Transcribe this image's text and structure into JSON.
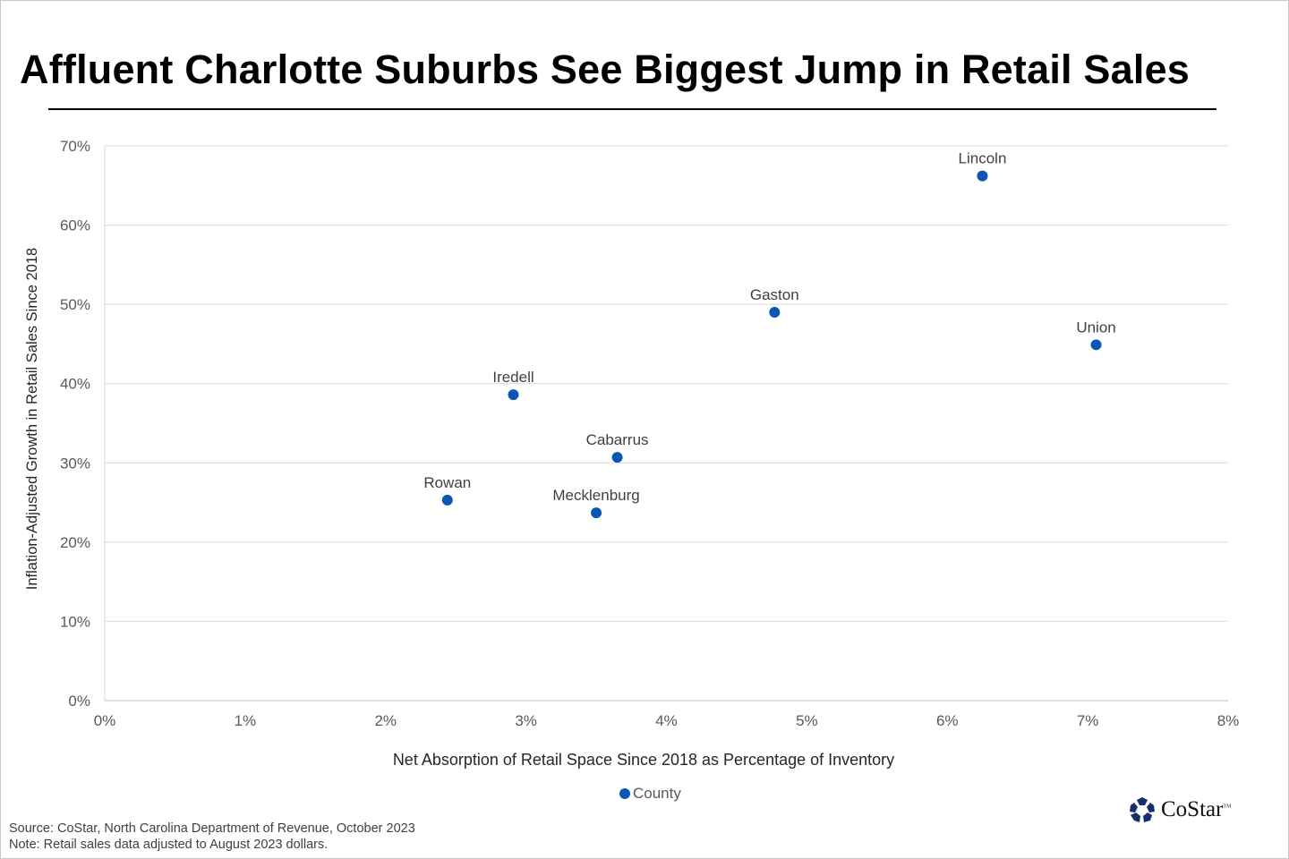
{
  "chart_data": {
    "type": "scatter",
    "title": "Affluent Charlotte Suburbs See Biggest Jump in Retail Sales",
    "xlabel": "Net Absorption  of Retail Space Since 2018 as Percentage of Inventory",
    "ylabel": "Inflation-Adjusted Growth in Retail Sales Since 2018",
    "xlim": [
      0,
      8
    ],
    "ylim": [
      0,
      70
    ],
    "x_ticks": [
      0,
      1,
      2,
      3,
      4,
      5,
      6,
      7,
      8
    ],
    "x_tick_labels": [
      "0%",
      "1%",
      "2%",
      "3%",
      "4%",
      "5%",
      "6%",
      "7%",
      "8%"
    ],
    "y_ticks": [
      0,
      10,
      20,
      30,
      40,
      50,
      60,
      70
    ],
    "y_tick_labels": [
      "0%",
      "10%",
      "20%",
      "30%",
      "40%",
      "50%",
      "60%",
      "70%"
    ],
    "grid": "horizontal",
    "legend": {
      "placement": "bottom",
      "entries": [
        "County"
      ]
    },
    "series": [
      {
        "name": "County",
        "color": "#0b56b3",
        "points": [
          {
            "label": "Rowan",
            "x": 2.44,
            "y": 25.3
          },
          {
            "label": "Iredell",
            "x": 2.91,
            "y": 38.6
          },
          {
            "label": "Mecklenburg",
            "x": 3.5,
            "y": 23.7
          },
          {
            "label": "Cabarrus",
            "x": 3.65,
            "y": 30.7
          },
          {
            "label": "Gaston",
            "x": 4.77,
            "y": 49.0
          },
          {
            "label": "Lincoln",
            "x": 6.25,
            "y": 66.2
          },
          {
            "label": "Union",
            "x": 7.06,
            "y": 44.9
          }
        ]
      }
    ]
  },
  "footer": {
    "source": "Source: CoStar, North Carolina Department of Revenue,  October 2023",
    "note": "Note: Retail sales data adjusted to August 2023 dollars."
  },
  "logo": {
    "name": "CoStar",
    "tm": "TM"
  }
}
